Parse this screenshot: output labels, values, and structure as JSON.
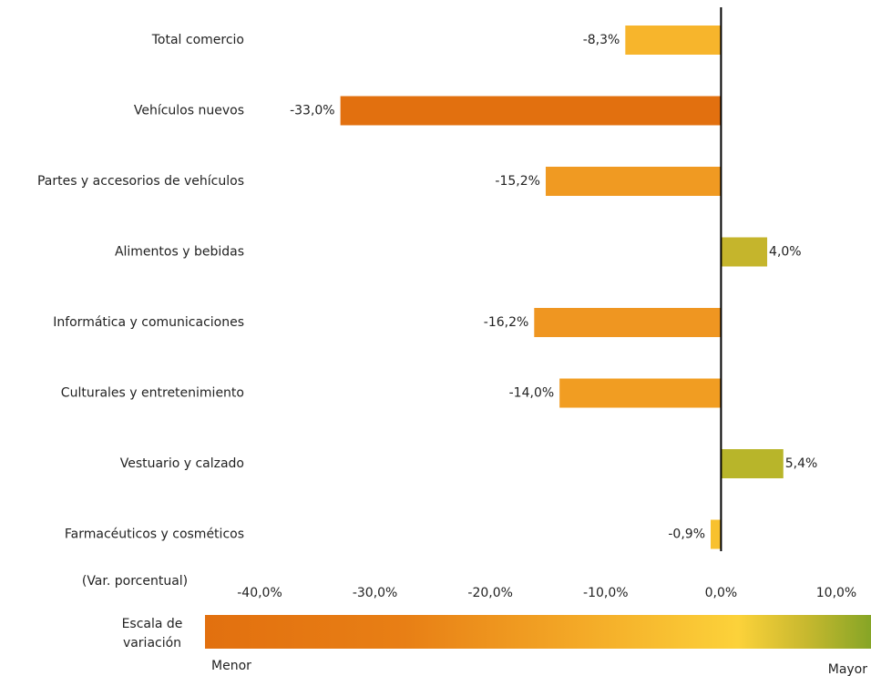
{
  "chart_data": {
    "type": "hbar",
    "categories": [
      "Total comercio",
      "Vehículos nuevos",
      "Partes y accesorios de vehículos",
      "Alimentos y bebidas",
      "Informática y comunicaciones",
      "Culturales y entretenimiento",
      "Vestuario y calzado",
      "Farmacéuticos y cosméticos"
    ],
    "values": [
      -8.3,
      -33.0,
      -15.2,
      4.0,
      -16.2,
      -14.0,
      5.4,
      -0.9
    ],
    "value_labels": [
      "-8,3%",
      "-33,0%",
      "-15,2%",
      "4,0%",
      "-16,2%",
      "-14,0%",
      "5,4%",
      "-0,9%"
    ],
    "colors": [
      "#f7b52c",
      "#e2700f",
      "#f09a22",
      "#c5b52c",
      "#ef9621",
      "#f19d22",
      "#b8b52a",
      "#f8c12e"
    ],
    "xlim": [
      -40,
      10
    ],
    "xticks": [
      {
        "value": -40,
        "label": "-40,0%"
      },
      {
        "value": -30,
        "label": "-30,0%"
      },
      {
        "value": -20,
        "label": "-20,0%"
      },
      {
        "value": -10,
        "label": "-10,0%"
      },
      {
        "value": 0,
        "label": "0,0%"
      },
      {
        "value": 10,
        "label": "10,0%"
      }
    ],
    "x_label": "(Var. porcentual)",
    "grid": false,
    "color_scale": {
      "title": [
        "Escala de",
        "variación"
      ],
      "low": "Menor",
      "high": "Mayor"
    }
  }
}
